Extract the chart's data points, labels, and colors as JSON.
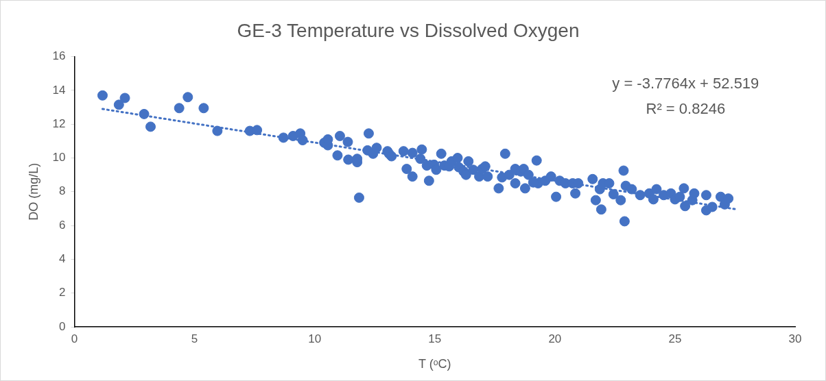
{
  "chart_data": {
    "type": "scatter",
    "title": "GE-3 Temperature vs Dissolved Oxygen",
    "xlabel": "T (ᵒC)",
    "ylabel": "DO (mg/L)",
    "xlim": [
      0,
      30
    ],
    "xticks": [
      0,
      5,
      10,
      15,
      20,
      25,
      30
    ],
    "ylim": [
      0,
      16
    ],
    "yticks": [
      0,
      2,
      4,
      6,
      8,
      10,
      12,
      14,
      16
    ],
    "grid": false,
    "legend": false,
    "marker": "circle",
    "annotations": [
      "y = -3.7764x + 52.519",
      "R² = 0.8246"
    ],
    "series": [
      {
        "color": "#4472c4",
        "x": [
          1.17,
          1.85,
          2.1,
          2.9,
          3.17,
          4.36,
          4.72,
          5.38,
          5.95,
          7.3,
          7.6,
          8.7,
          9.1,
          9.4,
          9.5,
          10.4,
          10.55,
          10.55,
          10.95,
          11.05,
          11.38,
          11.4,
          11.77,
          11.77,
          11.85,
          12.25,
          12.2,
          12.43,
          12.58,
          13.03,
          13.1,
          13.2,
          13.7,
          13.83,
          14.07,
          14.07,
          14.46,
          14.4,
          14.76,
          14.67,
          14.97,
          15.06,
          15.27,
          15.4,
          15.6,
          15.7,
          15.95,
          16.0,
          16.2,
          16.3,
          16.4,
          16.6,
          16.85,
          16.97,
          17.1,
          17.2,
          17.66,
          17.8,
          17.93,
          18.1,
          18.35,
          18.35,
          18.58,
          18.7,
          18.76,
          18.9,
          19.24,
          19.3,
          19.1,
          19.6,
          19.84,
          20.05,
          20.2,
          20.44,
          20.74,
          20.85,
          20.97,
          21.57,
          21.7,
          21.87,
          22.0,
          21.93,
          22.26,
          22.44,
          22.74,
          22.86,
          22.9,
          22.95,
          23.2,
          23.55,
          23.93,
          24.1,
          24.23,
          24.53,
          24.83,
          25.0,
          25.2,
          25.37,
          25.42,
          25.72,
          25.8,
          26.3,
          26.3,
          26.55,
          26.9,
          27.07,
          27.22
        ],
        "values": [
          13.7,
          13.15,
          13.55,
          12.6,
          11.85,
          12.95,
          13.6,
          12.95,
          11.6,
          11.6,
          11.65,
          11.2,
          11.3,
          11.45,
          11.05,
          10.9,
          10.75,
          11.1,
          10.15,
          11.3,
          10.95,
          9.9,
          9.75,
          9.95,
          7.65,
          11.45,
          10.45,
          10.25,
          10.6,
          10.4,
          10.25,
          10.1,
          10.4,
          9.35,
          10.3,
          8.9,
          10.5,
          9.95,
          8.65,
          9.55,
          9.6,
          9.3,
          10.25,
          9.55,
          9.5,
          9.8,
          10.0,
          9.45,
          9.2,
          9.0,
          9.8,
          9.3,
          8.9,
          9.35,
          9.5,
          8.9,
          8.2,
          8.85,
          10.25,
          9.0,
          9.35,
          8.5,
          9.2,
          9.35,
          8.2,
          9.0,
          9.85,
          8.5,
          8.55,
          8.65,
          8.9,
          7.7,
          8.65,
          8.5,
          8.5,
          7.9,
          8.5,
          8.75,
          7.5,
          8.15,
          8.5,
          6.95,
          8.5,
          7.85,
          7.5,
          9.25,
          6.25,
          8.35,
          8.15,
          7.8,
          7.9,
          7.55,
          8.15,
          7.8,
          7.9,
          7.55,
          7.7,
          8.2,
          7.15,
          7.5,
          7.9,
          7.8,
          6.9,
          7.1,
          7.7,
          7.25,
          7.6
        ]
      },
      {
        "type": "line",
        "color": "#4472c4",
        "marker": "none",
        "line_style": "dotted",
        "x": [
          1.17,
          27.6
        ],
        "values": [
          12.9,
          6.95
        ]
      }
    ]
  }
}
